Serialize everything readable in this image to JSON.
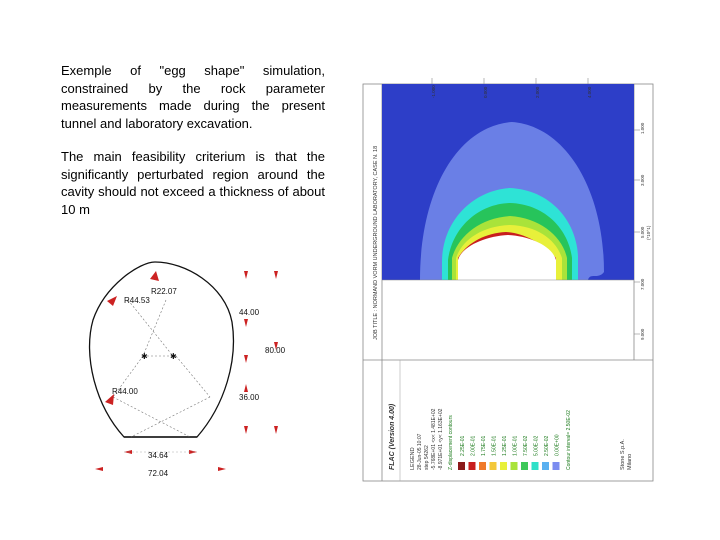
{
  "text": {
    "paragraph1": "Exemple of \"egg shape\" simulation, constrained by the rock parameter measurements made during the present tunnel and laboratory excavation.",
    "paragraph2": "The main feasibility criterium is that the significantly perturbated region around the cavity should not exceed a thickness of about 10 m"
  },
  "cross_section": {
    "radius_left_top": "R44.53",
    "radius_top": "R22.07",
    "radius_left_bottom": "R44.00",
    "height_upper": "44.00",
    "height_total": "80.00",
    "height_lower": "36.00",
    "base_width": "34.64",
    "total_width": "72.04"
  },
  "flac_plot": {
    "header_title": "JOB TITLE : NORMAND VORM UNDERGROUND LABORATORY, CASE N. 18",
    "version": "FLAC (Version 4.00)",
    "legend_title": "LEGEND",
    "date": "28-Jun-05 10:07",
    "step": "step 54262",
    "x_range": "-5.768E+01 <x< 1.481E+02",
    "y_range": "-8.971E+01 <y< 1.163E+02",
    "contour_title": "Z-displacement contours",
    "contour_levels": [
      "2.25E-01",
      "2.00E-01",
      "1.75E-01",
      "1.50E-01",
      "1.25E-01",
      "1.00E-01",
      "7.50E-02",
      "5.00E-02",
      "2.50E-02",
      "0.00E+00"
    ],
    "contour_colors": [
      "#8b1a1a",
      "#c81e1e",
      "#f07a2a",
      "#f3c83a",
      "#e8f03a",
      "#a9e33a",
      "#3ec85a",
      "#2fe0c8",
      "#5ab0f0",
      "#7b8cf0"
    ],
    "contour_interval": "Contour interval= 2.50E-02",
    "company": "Stone S.p.A.",
    "city": "Milano",
    "tick_labels_top": [
      "-1.000",
      "0.000",
      "2.000",
      "4.000"
    ],
    "tick_labels_right": [
      "1.000",
      "3.000",
      "5.000",
      "7.000",
      "9.000",
      "(*10^1)"
    ],
    "colors": {
      "background": "#2d3ec8",
      "halo": "#6a7fe6",
      "cyan": "#2ee3d6",
      "green": "#27c45b"
    }
  }
}
